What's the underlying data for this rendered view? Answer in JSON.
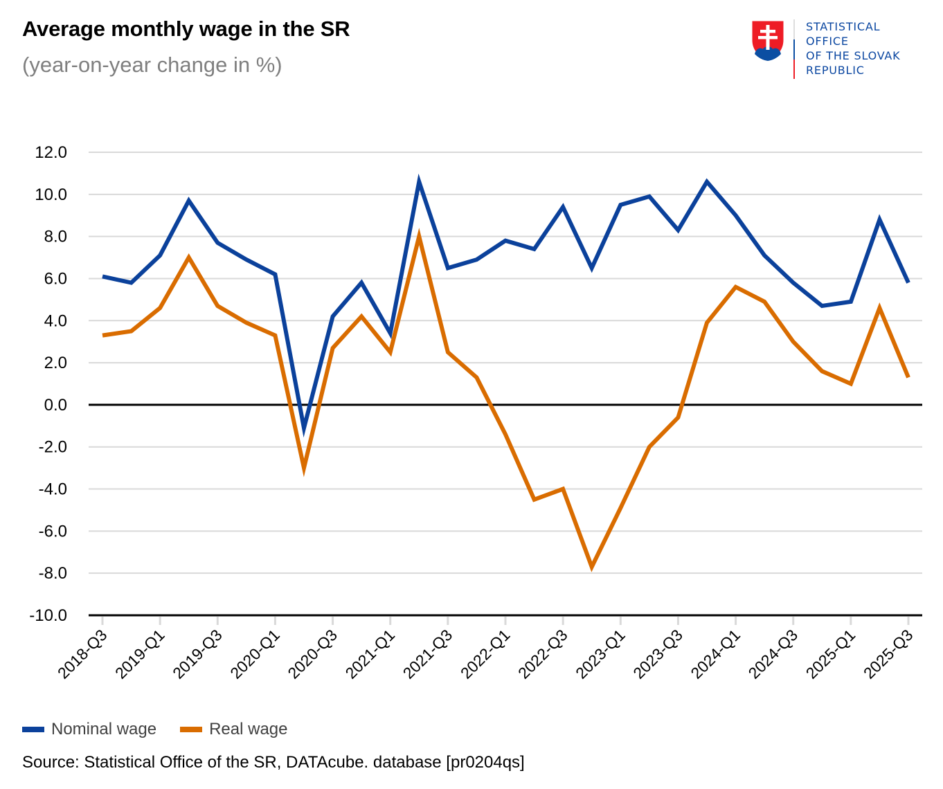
{
  "header": {
    "title": "Average monthly wage in the SR",
    "subtitle": "(year-on-year change in %)"
  },
  "logo": {
    "lines": [
      "STATISTICAL",
      "OFFICE",
      "OF THE SLOVAK",
      "REPUBLIC"
    ],
    "emblem": "slovak-coat-of-arms-icon",
    "colors": {
      "text": "#0b47a1",
      "shield_red": "#ee1c25",
      "shield_blue": "#0b4ea2"
    }
  },
  "legend": {
    "items": [
      {
        "label": "Nominal wage",
        "color": "#0b419b"
      },
      {
        "label": "Real wage",
        "color": "#d96c00"
      }
    ]
  },
  "source": "Source: Statistical Office of the SR, DATAcube. database [pr0204qs]",
  "chart_data": {
    "type": "line",
    "title": "Average monthly wage in the SR",
    "subtitle": "(year-on-year change in %)",
    "xlabel": "",
    "ylabel": "",
    "ylim": [
      -10,
      12
    ],
    "yticks": [
      12,
      10,
      8,
      6,
      4,
      2,
      0,
      -2,
      -4,
      -6,
      -8,
      -10
    ],
    "ytick_labels": [
      "12.0",
      "10.0",
      "8.0",
      "6.0",
      "4.0",
      "2.0",
      "0.0",
      "-2.0",
      "-4.0",
      "-6.0",
      "-8.0",
      "-10.0"
    ],
    "grid": true,
    "legend_position": "bottom-left",
    "x": [
      "2018-Q3",
      "2018-Q4",
      "2019-Q1",
      "2019-Q2",
      "2019-Q3",
      "2019-Q4",
      "2020-Q1",
      "2020-Q2",
      "2020-Q3",
      "2020-Q4",
      "2021-Q1",
      "2021-Q2",
      "2021-Q3",
      "2021-Q4",
      "2022-Q1",
      "2022-Q2",
      "2022-Q3",
      "2022-Q4",
      "2023-Q1",
      "2023-Q2",
      "2023-Q3",
      "2023-Q4",
      "2024-Q1",
      "2024-Q2",
      "2024-Q3",
      "2024-Q4",
      "2025-Q1",
      "2025-Q2",
      "2025-Q3"
    ],
    "xtick_labels": [
      "2018-Q3",
      "2019-Q1",
      "2019-Q3",
      "2020-Q1",
      "2020-Q3",
      "2021-Q1",
      "2021-Q3",
      "2022-Q1",
      "2022-Q3",
      "2023-Q1",
      "2023-Q3",
      "2024-Q1",
      "2024-Q3",
      "2025-Q1",
      "2025-Q3"
    ],
    "series": [
      {
        "name": "Nominal wage",
        "color": "#0b419b",
        "values": [
          6.1,
          5.8,
          7.1,
          9.7,
          7.7,
          6.9,
          6.2,
          -1.1,
          4.2,
          5.8,
          3.4,
          10.6,
          6.5,
          6.9,
          7.8,
          7.4,
          9.4,
          6.5,
          9.5,
          9.9,
          8.3,
          10.6,
          9.0,
          7.1,
          5.8,
          4.7,
          4.9,
          8.8,
          5.8
        ]
      },
      {
        "name": "Real wage",
        "color": "#d96c00",
        "values": [
          3.3,
          3.5,
          4.6,
          7.0,
          4.7,
          3.9,
          3.3,
          -3.0,
          2.7,
          4.2,
          2.5,
          8.0,
          2.5,
          1.3,
          -1.4,
          -4.5,
          -4.0,
          -7.7,
          -4.9,
          -2.0,
          -0.6,
          3.9,
          5.6,
          4.9,
          3.0,
          1.6,
          1.0,
          4.6,
          1.3
        ]
      }
    ]
  }
}
